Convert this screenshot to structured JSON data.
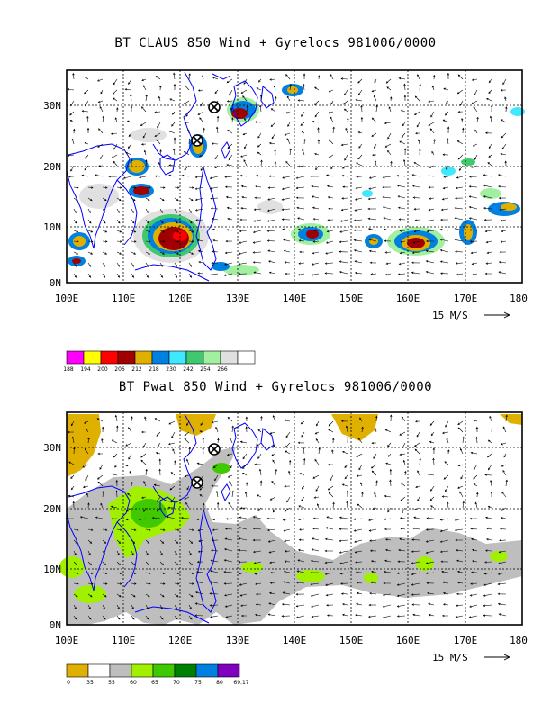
{
  "panels": [
    {
      "id": "top",
      "title": "BT CLAUS 850 Wind + Gyrelocs 981006/0000",
      "y_ticks": [
        "30N",
        "20N",
        "10N",
        "0N"
      ],
      "x_ticks": [
        "100E",
        "110E",
        "120E",
        "130E",
        "140E",
        "150E",
        "160E",
        "170E",
        "180"
      ],
      "vector_reference": "15 M/S",
      "colorbar_labels": [
        "188",
        "194",
        "200",
        "206",
        "212",
        "218",
        "230",
        "242",
        "254",
        "266"
      ],
      "colorbar_colors": [
        "#ff00ff",
        "#ffff00",
        "#ff0000",
        "#a00000",
        "#e0b000",
        "#0080e0",
        "#40e8ff",
        "#40c870",
        "#a0f0a0",
        "#e0e0e0",
        "#ffffff"
      ]
    },
    {
      "id": "bottom",
      "title": "BT Pwat 850 Wind + Gyrelocs 981006/0000",
      "y_ticks": [
        "30N",
        "20N",
        "10N",
        "0N"
      ],
      "x_ticks": [
        "100E",
        "110E",
        "120E",
        "130E",
        "140E",
        "150E",
        "160E",
        "170E",
        "180"
      ],
      "vector_reference": "15 M/S",
      "colorbar_labels": [
        "0",
        "35",
        "55",
        "60",
        "65",
        "70",
        "75",
        "80",
        "69.17"
      ],
      "colorbar_colors": [
        "#e0b000",
        "#ffffff",
        "#bebebe",
        "#a0f000",
        "#40c800",
        "#008000",
        "#0080e0",
        "#8000c0"
      ]
    }
  ]
}
